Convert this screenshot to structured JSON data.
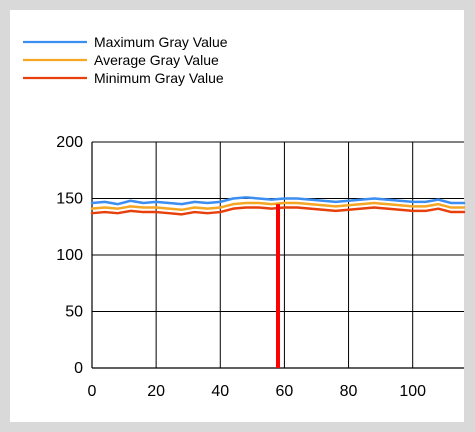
{
  "chart_data": {
    "type": "line",
    "title": "",
    "xlabel": "",
    "ylabel": "",
    "xlim": [
      0,
      116
    ],
    "ylim": [
      0,
      200
    ],
    "x_ticks": [
      0,
      20,
      40,
      60,
      80,
      100
    ],
    "y_ticks": [
      0,
      50,
      100,
      150,
      200
    ],
    "grid": true,
    "legend_position": "top-left",
    "marker": {
      "x": 58,
      "color": "#ff0000"
    },
    "series": [
      {
        "name": "Maximum Gray Value",
        "color": "#3c8ef0",
        "x": [
          0,
          4,
          8,
          12,
          16,
          20,
          24,
          28,
          32,
          36,
          40,
          44,
          48,
          52,
          56,
          60,
          64,
          68,
          72,
          76,
          80,
          84,
          88,
          92,
          96,
          100,
          104,
          108,
          112,
          116
        ],
        "values": [
          146,
          147,
          145,
          148,
          146,
          147,
          146,
          145,
          147,
          146,
          147,
          150,
          151,
          150,
          149,
          150,
          150,
          149,
          148,
          147,
          148,
          149,
          150,
          149,
          148,
          147,
          147,
          149,
          146,
          146
        ]
      },
      {
        "name": "Average Gray Value",
        "color": "#f5a623",
        "x": [
          0,
          4,
          8,
          12,
          16,
          20,
          24,
          28,
          32,
          36,
          40,
          44,
          48,
          52,
          56,
          60,
          64,
          68,
          72,
          76,
          80,
          84,
          88,
          92,
          96,
          100,
          104,
          108,
          112,
          116
        ],
        "values": [
          141,
          142,
          141,
          143,
          142,
          142,
          141,
          140,
          142,
          141,
          142,
          145,
          146,
          146,
          145,
          146,
          146,
          145,
          144,
          143,
          144,
          145,
          146,
          145,
          144,
          143,
          143,
          145,
          142,
          142
        ]
      },
      {
        "name": "Minimum Gray Value",
        "color": "#e8400c",
        "x": [
          0,
          4,
          8,
          12,
          16,
          20,
          24,
          28,
          32,
          36,
          40,
          44,
          48,
          52,
          56,
          60,
          64,
          68,
          72,
          76,
          80,
          84,
          88,
          92,
          96,
          100,
          104,
          108,
          112,
          116
        ],
        "values": [
          137,
          138,
          137,
          139,
          138,
          138,
          137,
          136,
          138,
          137,
          138,
          141,
          142,
          142,
          141,
          142,
          142,
          141,
          140,
          139,
          140,
          141,
          142,
          141,
          140,
          139,
          139,
          141,
          138,
          138
        ]
      }
    ]
  }
}
